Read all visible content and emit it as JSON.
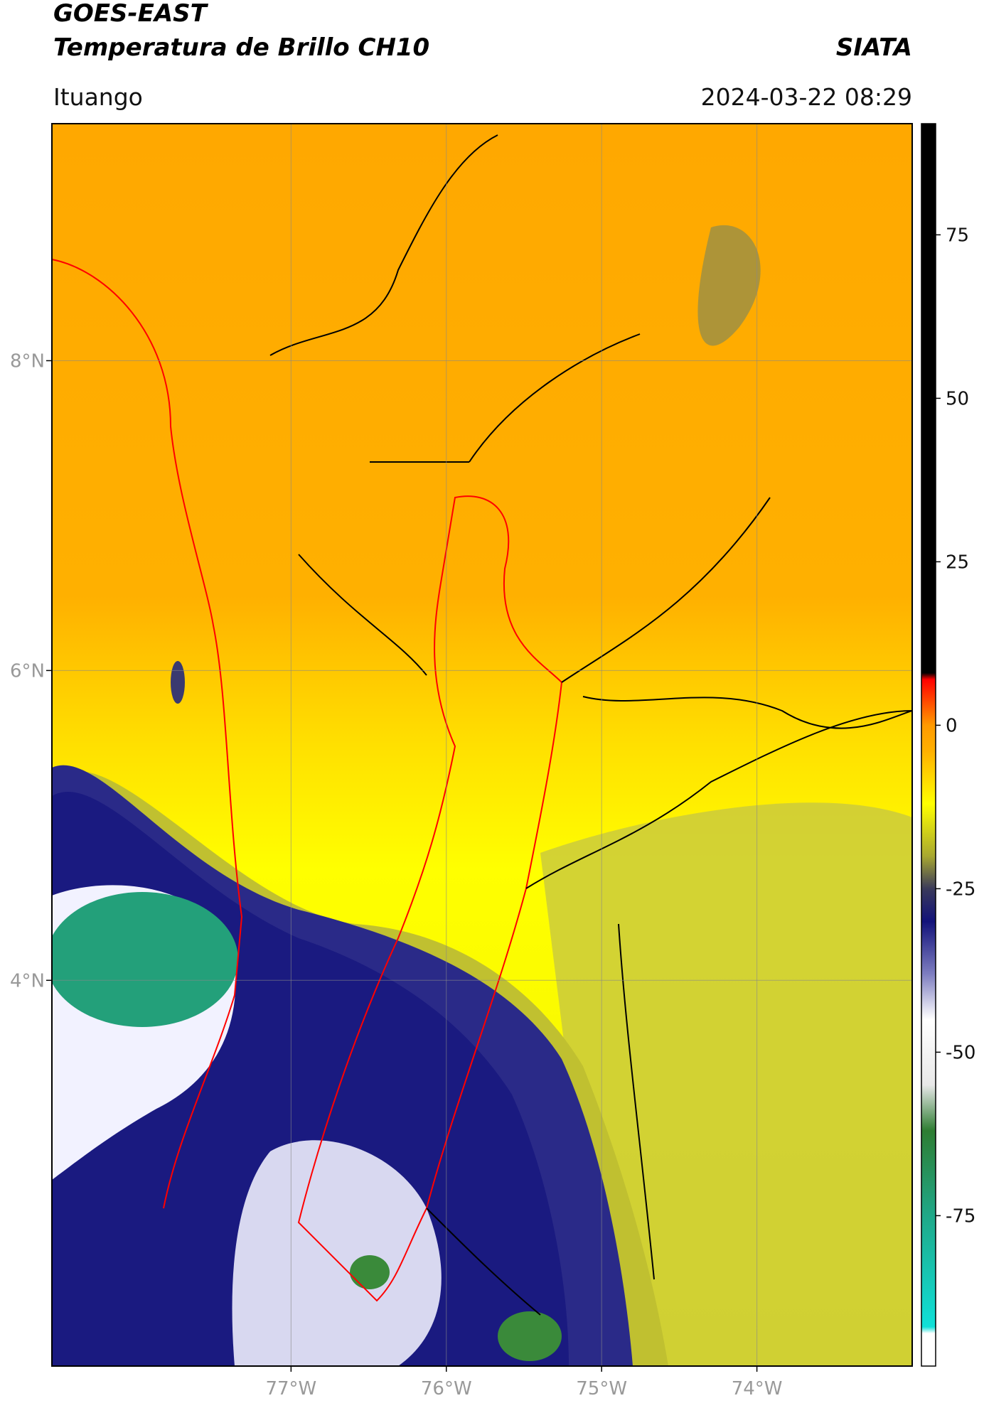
{
  "chart_data": {
    "type": "map",
    "title": "GOES-EAST",
    "subtitle": "Temperatura de Brillo CH10",
    "source": "SIATA",
    "region": "Ituango",
    "datetime": "2024-03-22 08:29",
    "xlim": [
      -78.54,
      -73.0
    ],
    "ylim": [
      1.51,
      9.53
    ],
    "xticks": [
      {
        "value": -77,
        "label": "77°W"
      },
      {
        "value": -76,
        "label": "76°W"
      },
      {
        "value": -75,
        "label": "75°W"
      },
      {
        "value": -74,
        "label": "74°W"
      }
    ],
    "yticks": [
      {
        "value": 8,
        "label": "8°N"
      },
      {
        "value": 6,
        "label": "6°N"
      },
      {
        "value": 4,
        "label": "4°N"
      }
    ],
    "grid": true,
    "clim": [
      -98,
      92
    ],
    "cticks": [
      75,
      50,
      25,
      0,
      -25,
      -50,
      -75
    ],
    "colorscale": [
      {
        "value": -98,
        "color": "#ffffff"
      },
      {
        "value": -93,
        "color": "#ffffff"
      },
      {
        "value": -92,
        "color": "#10e0d8"
      },
      {
        "value": -75,
        "color": "#1fa888"
      },
      {
        "value": -62,
        "color": "#2e7d32"
      },
      {
        "value": -55,
        "color": "#e8e8e8"
      },
      {
        "value": -45,
        "color": "#ffffff"
      },
      {
        "value": -38,
        "color": "#7d7dc0"
      },
      {
        "value": -30,
        "color": "#12127a"
      },
      {
        "value": -25,
        "color": "#3a3a5a"
      },
      {
        "value": -20,
        "color": "#a8a830"
      },
      {
        "value": -12,
        "color": "#ffff00"
      },
      {
        "value": -4,
        "color": "#ffb000"
      },
      {
        "value": 0,
        "color": "#ff9a00"
      },
      {
        "value": 7,
        "color": "#ff0000"
      },
      {
        "value": 8,
        "color": "#000000"
      },
      {
        "value": 92,
        "color": "#000000"
      }
    ]
  }
}
